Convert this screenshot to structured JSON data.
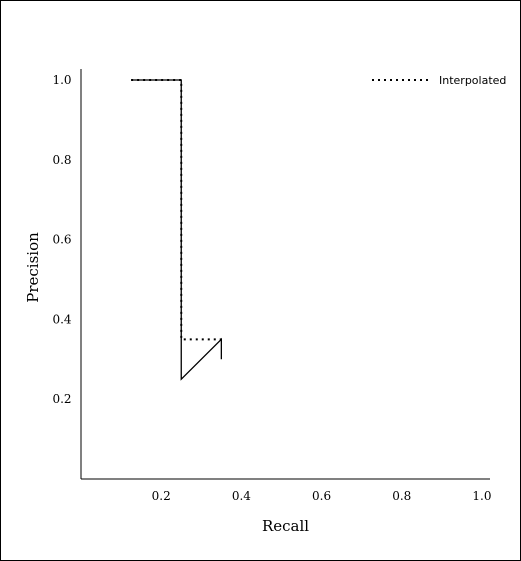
{
  "chart_data": {
    "type": "line",
    "title": "",
    "xlabel": "Recall",
    "ylabel": "Precision",
    "xlim": [
      0.0,
      1.02
    ],
    "ylim": [
      0.0,
      1.01
    ],
    "xticks": [
      0.2,
      0.4,
      0.6,
      0.8,
      1.0
    ],
    "xtick_labels": [
      "0.2",
      "0.4",
      "0.6",
      "0.8",
      "1.0"
    ],
    "yticks": [
      0.2,
      0.4,
      0.6,
      0.8,
      1.0
    ],
    "ytick_labels": [
      "0.2",
      "0.4",
      "0.6",
      "0.8",
      "1.0"
    ],
    "grid": false,
    "legend_position": "top-right",
    "series": [
      {
        "style": "solid",
        "color": "#000000",
        "x": [
          0.125,
          0.25,
          0.25,
          0.25,
          0.35,
          0.35
        ],
        "y": [
          1.0,
          1.0,
          0.25,
          0.25,
          0.35,
          0.3
        ]
      },
      {
        "name": "Interpolated",
        "style": "dotted",
        "color": "#000000",
        "x": [
          0.125,
          0.25,
          0.25,
          0.35
        ],
        "y": [
          1.0,
          1.0,
          0.35,
          0.35
        ]
      }
    ]
  }
}
